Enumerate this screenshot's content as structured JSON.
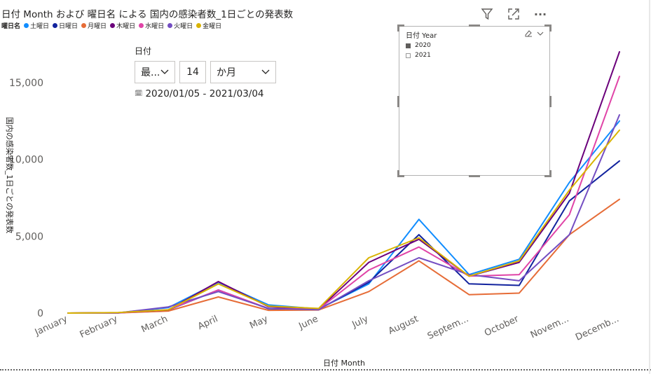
{
  "header": {
    "title": "日付 Month および 曜日名 による 国内の感染者数_1日ごとの発表数"
  },
  "toolbar": {
    "icons": [
      "filter-icon",
      "focus-mode-icon",
      "more-options-icon"
    ],
    "more_label": "···"
  },
  "slicer": {
    "label": "日付",
    "mode_value": "最...",
    "count_value": "14",
    "unit_value": "か月",
    "date_range": "2020/01/05 - 2021/03/04",
    "calendar_glyph": "🗓"
  },
  "year_filter": {
    "title": "日付 Year",
    "items": [
      {
        "label": "2020",
        "checked": true
      },
      {
        "label": "2021",
        "checked": false
      }
    ]
  },
  "chart_data": {
    "type": "line",
    "xlabel": "日付 Month",
    "ylabel": "国内の感染者数_1日ごとの発表数",
    "legend_title": "曜日名",
    "legend_position": "top-left",
    "ylim": [
      0,
      17000
    ],
    "yticks": [
      0,
      5000,
      10000,
      15000
    ],
    "ytick_labels": [
      "0",
      "5,000",
      "10,000",
      "15,000"
    ],
    "grid": false,
    "categories": [
      "January",
      "February",
      "March",
      "April",
      "May",
      "June",
      "July",
      "August",
      "Septem...",
      "October",
      "Novem...",
      "Decemb..."
    ],
    "series": [
      {
        "name": "土曜日",
        "color": "#118DFF",
        "values": [
          0,
          20,
          350,
          2000,
          530,
          270,
          1900,
          6100,
          2500,
          3500,
          8500,
          12500
        ]
      },
      {
        "name": "日曜日",
        "color": "#12239E",
        "values": [
          0,
          20,
          200,
          1500,
          280,
          240,
          2000,
          5100,
          1900,
          1800,
          7300,
          9900
        ]
      },
      {
        "name": "月曜日",
        "color": "#E66C37",
        "values": [
          0,
          10,
          130,
          1050,
          180,
          200,
          1400,
          3400,
          1200,
          1300,
          5100,
          7400
        ]
      },
      {
        "name": "木曜日",
        "color": "#6B007B",
        "values": [
          0,
          20,
          200,
          2050,
          420,
          240,
          3300,
          4800,
          2400,
          3300,
          7800,
          17000
        ]
      },
      {
        "name": "水曜日",
        "color": "#E044A7",
        "values": [
          0,
          10,
          220,
          1500,
          300,
          250,
          2800,
          4300,
          2400,
          2500,
          6400,
          15400
        ]
      },
      {
        "name": "火曜日",
        "color": "#744EC2",
        "values": [
          0,
          10,
          400,
          1400,
          300,
          220,
          2100,
          3600,
          2500,
          2100,
          5100,
          12900
        ]
      },
      {
        "name": "金曜日",
        "color": "#D9B300",
        "values": [
          0,
          30,
          210,
          1900,
          450,
          300,
          3600,
          4900,
          2400,
          3400,
          8000,
          11900
        ]
      }
    ]
  }
}
